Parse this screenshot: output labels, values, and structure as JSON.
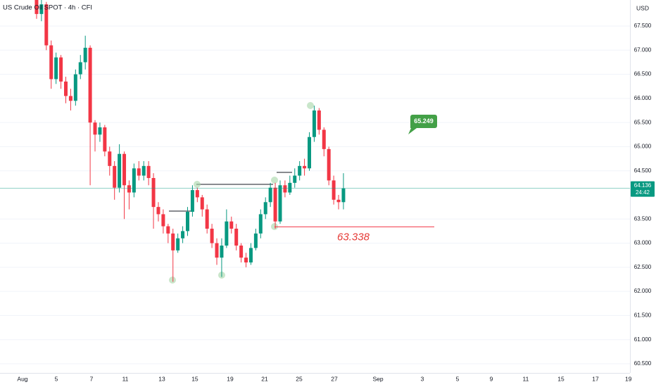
{
  "chart_data": {
    "type": "candlestick",
    "title": "US Crude Oil SPOT · 4h · CFI",
    "currency": "USD",
    "colors": {
      "up": "#089981",
      "down": "#f23645"
    },
    "xlim": [
      -7.51,
      121.82
    ],
    "ylim": [
      60.31,
      68.04
    ],
    "yticks": [
      {
        "value": 67.5,
        "label": "67.500"
      },
      {
        "value": 67.0,
        "label": "67.000"
      },
      {
        "value": 66.5,
        "label": "66.500"
      },
      {
        "value": 66.0,
        "label": "66.000"
      },
      {
        "value": 65.5,
        "label": "65.500"
      },
      {
        "value": 65.0,
        "label": "65.000"
      },
      {
        "value": 64.5,
        "label": "64.500"
      },
      {
        "value": 63.5,
        "label": "63.500"
      },
      {
        "value": 63.0,
        "label": "63.000"
      },
      {
        "value": 62.5,
        "label": "62.500"
      },
      {
        "value": 62.0,
        "label": "62.000"
      },
      {
        "value": 61.5,
        "label": "61.500"
      },
      {
        "value": 61.0,
        "label": "61.000"
      },
      {
        "value": 60.5,
        "label": "60.500"
      }
    ],
    "xticks": [
      {
        "value": -2.89,
        "label": "Aug"
      },
      {
        "value": 4.05,
        "label": "5"
      },
      {
        "value": 11.27,
        "label": "7"
      },
      {
        "value": 18.21,
        "label": "11"
      },
      {
        "value": 25.72,
        "label": "13"
      },
      {
        "value": 32.51,
        "label": "15"
      },
      {
        "value": 39.74,
        "label": "19"
      },
      {
        "value": 46.82,
        "label": "21"
      },
      {
        "value": 53.9,
        "label": "25"
      },
      {
        "value": 61.13,
        "label": "27"
      },
      {
        "value": 70.09,
        "label": "Sep"
      },
      {
        "value": 79.19,
        "label": "3"
      },
      {
        "value": 86.42,
        "label": "5"
      },
      {
        "value": 93.35,
        "label": "9"
      },
      {
        "value": 100.43,
        "label": "11"
      },
      {
        "value": 107.66,
        "label": "15"
      },
      {
        "value": 114.74,
        "label": "17"
      },
      {
        "value": 121.5,
        "label": "19"
      }
    ],
    "open": [
      68.05,
      67.75,
      67.95,
      67.1,
      66.4,
      66.85,
      66.35,
      66.05,
      65.95,
      66.5,
      66.75,
      67.05,
      65.5,
      65.25,
      65.4,
      64.9,
      64.6,
      64.15,
      64.85,
      64.2,
      64.05,
      64.55,
      64.4,
      64.6,
      64.35,
      63.75,
      63.6,
      63.35,
      63.2,
      62.85,
      63.1,
      63.25,
      63.65,
      64.1,
      63.95,
      63.7,
      63.3,
      63.0,
      62.7,
      62.95,
      63.45,
      63.3,
      62.95,
      62.7,
      62.6,
      62.9,
      63.2,
      63.6,
      63.85,
      64.15,
      63.45,
      64.2,
      64.05,
      64.25,
      64.4,
      64.6,
      64.55,
      65.2,
      65.75,
      65.35,
      64.95,
      64.3,
      63.9,
      63.85
    ],
    "high": [
      68.1,
      68.04,
      68.0,
      67.2,
      66.95,
      66.9,
      66.45,
      66.2,
      66.6,
      66.9,
      67.3,
      67.1,
      65.55,
      65.5,
      65.45,
      65.0,
      64.7,
      65.05,
      64.9,
      64.3,
      64.65,
      64.7,
      64.7,
      64.7,
      64.45,
      63.85,
      63.7,
      63.4,
      63.3,
      63.2,
      63.35,
      63.75,
      64.2,
      64.15,
      64.0,
      63.8,
      63.4,
      63.1,
      63.1,
      63.7,
      63.55,
      63.4,
      63.0,
      62.8,
      63.0,
      63.3,
      63.7,
      63.95,
      64.25,
      64.25,
      64.3,
      64.3,
      64.4,
      64.55,
      64.7,
      64.75,
      65.3,
      65.85,
      65.8,
      65.4,
      65.0,
      64.4,
      64.0,
      64.45
    ],
    "low": [
      67.65,
      67.6,
      67.0,
      66.2,
      66.3,
      66.2,
      65.9,
      65.75,
      65.85,
      66.4,
      66.6,
      64.2,
      64.9,
      65.1,
      64.8,
      64.4,
      63.9,
      64.05,
      63.5,
      63.7,
      63.95,
      64.3,
      64.3,
      64.2,
      63.3,
      63.45,
      63.2,
      63.0,
      62.2,
      62.8,
      63.0,
      63.15,
      63.55,
      63.85,
      63.55,
      63.2,
      62.9,
      62.55,
      62.3,
      62.9,
      63.2,
      62.85,
      62.6,
      62.5,
      62.55,
      62.85,
      63.1,
      63.5,
      63.75,
      63.3,
      63.4,
      63.95,
      64.0,
      64.15,
      64.3,
      64.4,
      64.5,
      65.1,
      65.25,
      64.8,
      64.2,
      63.8,
      63.7,
      63.7
    ],
    "close": [
      67.75,
      67.95,
      67.1,
      66.4,
      66.85,
      66.35,
      66.05,
      65.95,
      66.5,
      66.75,
      67.05,
      65.5,
      65.25,
      65.4,
      64.9,
      64.6,
      64.15,
      64.85,
      64.2,
      64.05,
      64.55,
      64.4,
      64.6,
      64.35,
      63.75,
      63.6,
      63.35,
      63.2,
      62.85,
      63.1,
      63.25,
      63.65,
      64.1,
      63.95,
      63.7,
      63.3,
      63.0,
      62.7,
      62.95,
      63.45,
      63.3,
      62.95,
      62.7,
      62.6,
      62.9,
      63.2,
      63.6,
      63.85,
      64.15,
      63.45,
      64.2,
      64.05,
      64.25,
      64.4,
      64.6,
      64.55,
      65.2,
      65.75,
      65.35,
      64.95,
      64.3,
      63.9,
      63.85,
      64.136
    ],
    "last_price_label": "64.136",
    "countdown": "24:42",
    "support_level": 63.338,
    "target_label": "65.249"
  }
}
